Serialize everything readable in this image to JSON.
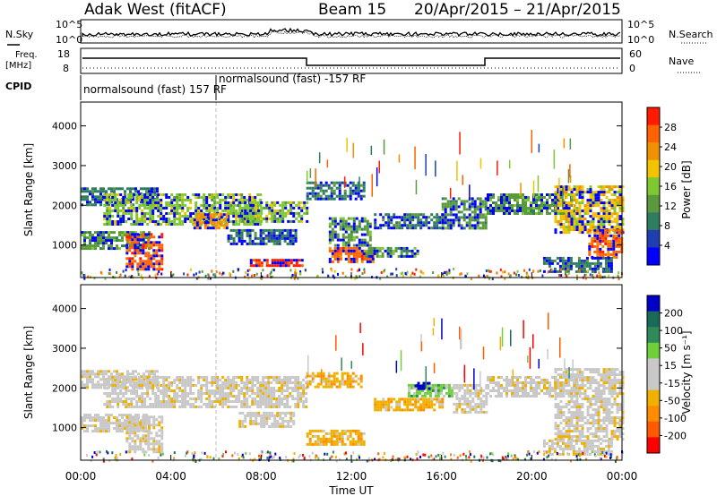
{
  "header": {
    "title": "Adak West (fitACF)",
    "beam": "Beam 15",
    "dates": "20/Apr/2015 – 21/Apr/2015"
  },
  "side_labels": {
    "nsky": "N.Sky",
    "nsearch": "N.Search",
    "freq_top": "Freq.",
    "freq_unit": "[MHz]",
    "nave": "Nave",
    "cpid": "CPID"
  },
  "top_panel": {
    "left_ticks": [
      "10^5",
      "10^0"
    ],
    "right_ticks": [
      "10^5",
      "10^0"
    ]
  },
  "freq_panel": {
    "left_ticks": [
      "18",
      "8"
    ],
    "right_ticks": [
      "60",
      "0"
    ]
  },
  "cpid_labels": [
    "normalsound (fast) 157 RF",
    "normalsound (fast) -157 RF"
  ],
  "colors": {
    "power": [
      "#0000ff",
      "#1f3fb0",
      "#2e7d60",
      "#5a9a3c",
      "#7ec832",
      "#f0c400",
      "#f09200",
      "#ff6200",
      "#ff1a00"
    ],
    "velocity": [
      "#ff0000",
      "#ff5a00",
      "#ff8c00",
      "#f0b000",
      "#c8c8c8",
      "#c8c8c8",
      "#6fcf3a",
      "#2e8b57",
      "#1a6a5a",
      "#0000c8"
    ]
  },
  "chart_data": [
    {
      "type": "heatmap",
      "name": "Power",
      "x_ticks": [
        "00:00",
        "04:00",
        "08:00",
        "12:00",
        "16:00",
        "20:00",
        "00:00"
      ],
      "x_range_hours": [
        0,
        24
      ],
      "ylabel": "Slant Range [km]",
      "y_ticks": [
        1000,
        2000,
        3000,
        4000
      ],
      "ylim": [
        180,
        4600
      ],
      "colorbar": {
        "label": "Power [dB]",
        "ticks": [
          "4",
          "8",
          "12",
          "16",
          "20",
          "24",
          "28"
        ]
      },
      "bands": [
        {
          "t0": 0.0,
          "t1": 3.4,
          "r0": 2000,
          "r1": 2450,
          "level": 2
        },
        {
          "t0": 1.0,
          "t1": 8.0,
          "r0": 1500,
          "r1": 2300,
          "level": 4
        },
        {
          "t0": 5.0,
          "t1": 6.5,
          "r0": 1450,
          "r1": 1800,
          "level": 6
        },
        {
          "t0": 7.0,
          "t1": 10.0,
          "r0": 1600,
          "r1": 2100,
          "level": 4
        },
        {
          "t0": 0.0,
          "t1": 3.0,
          "r0": 900,
          "r1": 1350,
          "level": 3
        },
        {
          "t0": 2.0,
          "t1": 3.6,
          "r0": 400,
          "r1": 1300,
          "level": 7
        },
        {
          "t0": 6.5,
          "t1": 9.5,
          "r0": 1000,
          "r1": 1400,
          "level": 2
        },
        {
          "t0": 7.5,
          "t1": 9.8,
          "r0": 450,
          "r1": 650,
          "level": 8
        },
        {
          "t0": 10.0,
          "t1": 12.6,
          "r0": 2150,
          "r1": 2600,
          "level": 2
        },
        {
          "t0": 11.0,
          "t1": 12.8,
          "r0": 1000,
          "r1": 1700,
          "level": 3
        },
        {
          "t0": 11.0,
          "t1": 13.0,
          "r0": 550,
          "r1": 950,
          "level": 7
        },
        {
          "t0": 13.0,
          "t1": 16.0,
          "r0": 1450,
          "r1": 1800,
          "level": 2
        },
        {
          "t0": 12.5,
          "t1": 15.0,
          "r0": 700,
          "r1": 950,
          "level": 3
        },
        {
          "t0": 16.0,
          "t1": 18.0,
          "r0": 1400,
          "r1": 2200,
          "level": 3
        },
        {
          "t0": 18.0,
          "t1": 22.0,
          "r0": 1800,
          "r1": 2300,
          "level": 3
        },
        {
          "t0": 21.0,
          "t1": 24.0,
          "r0": 1300,
          "r1": 2500,
          "level": 5
        },
        {
          "t0": 22.5,
          "t1": 24.0,
          "r0": 700,
          "r1": 1400,
          "level": 7
        },
        {
          "t0": 20.5,
          "t1": 23.5,
          "r0": 300,
          "r1": 700,
          "level": 2
        }
      ]
    },
    {
      "type": "heatmap",
      "name": "Velocity",
      "x_ticks": [
        "00:00",
        "04:00",
        "08:00",
        "12:00",
        "16:00",
        "20:00",
        "00:00"
      ],
      "x_range_hours": [
        0,
        24
      ],
      "xlabel": "Time UT",
      "ylabel": "Slant Range [km]",
      "y_ticks": [
        1000,
        2000,
        3000,
        4000
      ],
      "ylim": [
        180,
        4600
      ],
      "colorbar": {
        "label": "Velocity [m s⁻¹]",
        "ticks": [
          "-200",
          "-100",
          "-50",
          "-15",
          "15",
          "50",
          "100",
          "200"
        ]
      },
      "bands": [
        {
          "t0": 0.0,
          "t1": 3.4,
          "r0": 2000,
          "r1": 2450,
          "level": 4
        },
        {
          "t0": 1.0,
          "t1": 10.0,
          "r0": 1500,
          "r1": 2300,
          "level": 4
        },
        {
          "t0": 0.0,
          "t1": 3.0,
          "r0": 900,
          "r1": 1350,
          "level": 4
        },
        {
          "t0": 2.0,
          "t1": 3.6,
          "r0": 400,
          "r1": 1300,
          "level": 4
        },
        {
          "t0": 7.0,
          "t1": 9.5,
          "r0": 1000,
          "r1": 1400,
          "level": 4
        },
        {
          "t0": 10.0,
          "t1": 12.5,
          "r0": 2000,
          "r1": 2400,
          "level": 3
        },
        {
          "t0": 10.0,
          "t1": 12.6,
          "r0": 550,
          "r1": 950,
          "level": 3
        },
        {
          "t0": 13.0,
          "t1": 16.0,
          "r0": 1450,
          "r1": 1750,
          "level": 3
        },
        {
          "t0": 14.5,
          "t1": 16.5,
          "r0": 1800,
          "r1": 2100,
          "level": 6
        },
        {
          "t0": 14.8,
          "t1": 15.6,
          "r0": 1950,
          "r1": 2150,
          "level": 9
        },
        {
          "t0": 16.5,
          "t1": 18.0,
          "r0": 1400,
          "r1": 2100,
          "level": 4
        },
        {
          "t0": 18.0,
          "t1": 22.0,
          "r0": 1800,
          "r1": 2300,
          "level": 4
        },
        {
          "t0": 21.0,
          "t1": 24.0,
          "r0": 700,
          "r1": 2500,
          "level": 4
        },
        {
          "t0": 20.5,
          "t1": 23.5,
          "r0": 300,
          "r1": 700,
          "level": 4
        }
      ]
    }
  ]
}
